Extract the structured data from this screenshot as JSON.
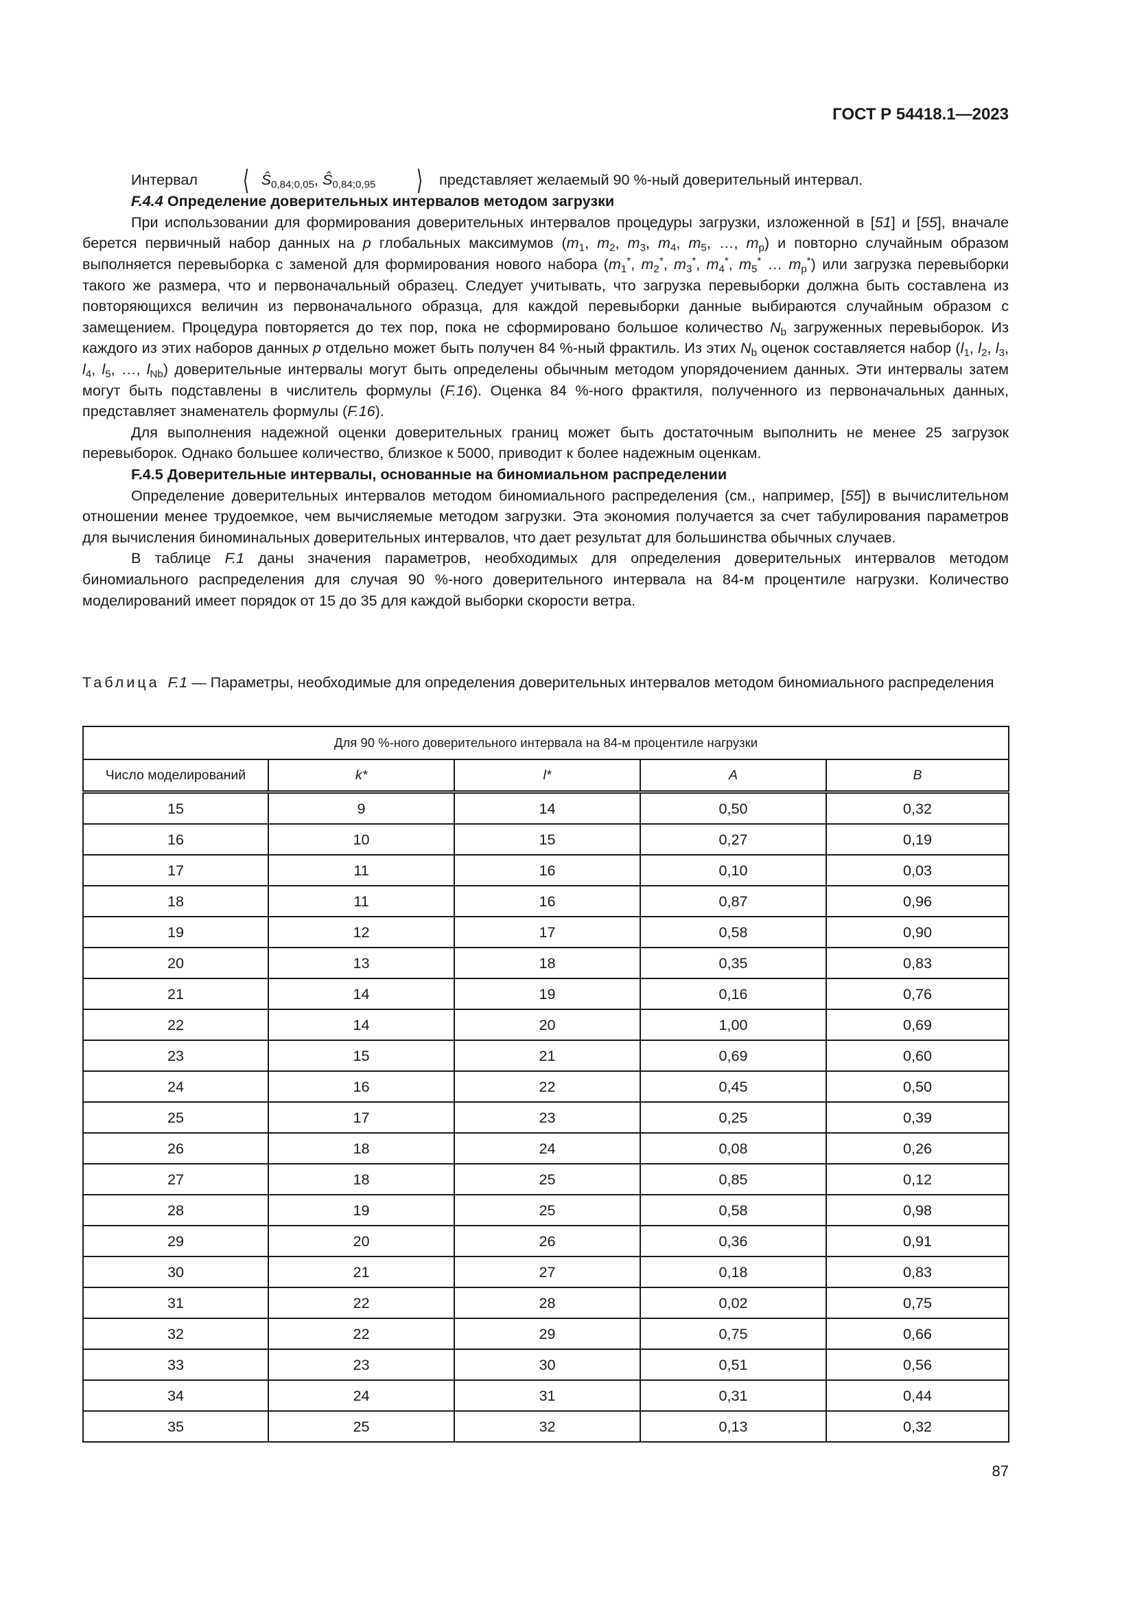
{
  "header": {
    "doc_id": "ГОСТ Р 54418.1—2023"
  },
  "intro": {
    "prefix": "Интервал ",
    "open": "⟨",
    "s1": "Ŝ",
    "s1_sub": "0,84;0,05",
    "sep": ", ",
    "s2": "Ŝ",
    "s2_sub": "0,84;0,95",
    "close": "⟩",
    "suffix": " представляет желаемый 90 %-ный доверительный интервал."
  },
  "sections": [
    {
      "type": "heading",
      "runs": [
        [
          "F.4.4",
          "i"
        ],
        [
          "  Определение доверительных интервалов методом загрузки",
          ""
        ]
      ]
    },
    {
      "type": "para",
      "runs": [
        [
          "При использовании для формирования доверительных интервалов процедуры загрузки, изложенной в [",
          ""
        ],
        [
          "51",
          "i"
        ],
        [
          "] и [",
          ""
        ],
        [
          "55",
          "i"
        ],
        [
          "], вначале берется первичный набор данных на ",
          ""
        ],
        [
          "p",
          "i"
        ],
        [
          " глобальных максимумов (",
          ""
        ],
        [
          "m",
          "i"
        ],
        [
          "1",
          "sub"
        ],
        [
          ", ",
          ""
        ],
        [
          "m",
          "i"
        ],
        [
          "2",
          "sub"
        ],
        [
          ", ",
          ""
        ],
        [
          "m",
          "i"
        ],
        [
          "3",
          "sub"
        ],
        [
          ", ",
          ""
        ],
        [
          "m",
          "i"
        ],
        [
          "4",
          "sub"
        ],
        [
          ", ",
          ""
        ],
        [
          "m",
          "i"
        ],
        [
          "5",
          "sub"
        ],
        [
          ", …, ",
          ""
        ],
        [
          "m",
          "i"
        ],
        [
          "p",
          "sub"
        ],
        [
          ") и по­вторно случайным образом выполняется перевыборка с заменой для формирования нового набора (",
          ""
        ],
        [
          "m",
          "i"
        ],
        [
          "1",
          "sub"
        ],
        [
          "*",
          "sup"
        ],
        [
          ", ",
          ""
        ],
        [
          "m",
          "i"
        ],
        [
          "2",
          "sub"
        ],
        [
          "*",
          "sup"
        ],
        [
          ", ",
          ""
        ],
        [
          "m",
          "i"
        ],
        [
          "3",
          "sub"
        ],
        [
          "*",
          "sup"
        ],
        [
          ", ",
          ""
        ],
        [
          "m",
          "i"
        ],
        [
          "4",
          "sub"
        ],
        [
          "*",
          "sup"
        ],
        [
          ", ",
          ""
        ],
        [
          "m",
          "i"
        ],
        [
          "5",
          "sub"
        ],
        [
          "*",
          "sup"
        ],
        [
          " … ",
          ""
        ],
        [
          "m",
          "i"
        ],
        [
          "p",
          "sub"
        ],
        [
          "*",
          "sup"
        ],
        [
          ") или загрузка перевыборки такого же размера, что и первоначальный образец. Следует учитывать, что загрузка перевыборки должна быть составлена из повторяющихся величин из первоначального образца, для каждой перевыборки данные выбираются случайным образом с замещением. Процедура повторяется до тех пор, пока не сформировано большое количество ",
          ""
        ],
        [
          "N",
          "i"
        ],
        [
          "b",
          "sub"
        ],
        [
          " загруженных перевыборок. Из каждого из этих наборов данных ",
          ""
        ],
        [
          "p",
          "i"
        ],
        [
          " отдельно может быть получен 84 %-ный фрактиль. Из этих ",
          ""
        ],
        [
          "N",
          "i"
        ],
        [
          "b",
          "sub"
        ],
        [
          " оценок составляется набор (",
          ""
        ],
        [
          "l",
          "i"
        ],
        [
          "1",
          "sub"
        ],
        [
          ", ",
          ""
        ],
        [
          "l",
          "i"
        ],
        [
          "2",
          "sub"
        ],
        [
          ", ",
          ""
        ],
        [
          "l",
          "i"
        ],
        [
          "3",
          "sub"
        ],
        [
          ", ",
          ""
        ],
        [
          "l",
          "i"
        ],
        [
          "4",
          "sub"
        ],
        [
          ", ",
          ""
        ],
        [
          "l",
          "i"
        ],
        [
          "5",
          "sub"
        ],
        [
          ", …, ",
          ""
        ],
        [
          "l",
          "i"
        ],
        [
          "Nb",
          "sub"
        ],
        [
          ") до­верительные интервалы могут быть определены обычным методом упорядочением данных. Эти интервалы затем могут быть подставлены в числитель формулы (",
          ""
        ],
        [
          "F.16",
          "i"
        ],
        [
          "). Оценка 84 %-ного фрактиля, полученного из первоначаль­ных данных, представляет знаменатель формулы (",
          ""
        ],
        [
          "F.16",
          "i"
        ],
        [
          ").",
          ""
        ]
      ]
    },
    {
      "type": "para",
      "runs": [
        [
          "Для выполнения надежной оценки доверительных границ может быть достаточным выполнить не менее 25 загрузок перевыборок. Однако большее количество, близкое к 5000, приводит к более надежным оценкам.",
          ""
        ]
      ]
    },
    {
      "type": "heading",
      "runs": [
        [
          "F.4.5  Доверительные интервалы, основанные на биномиальном распределении",
          ""
        ]
      ]
    },
    {
      "type": "para",
      "runs": [
        [
          "Определение доверительных интервалов методом биномиального распределения (см., например, [",
          ""
        ],
        [
          "55",
          "i"
        ],
        [
          "]) в вы­числительном отношении менее трудоемкое, чем вычисляемые методом загрузки. Эта экономия получается за счет табулирования параметров для вычисления биноминальных доверительных интервалов, что дает результат для большинства обычных случаев.",
          ""
        ]
      ]
    },
    {
      "type": "para",
      "runs": [
        [
          "В таблице ",
          ""
        ],
        [
          "F.1",
          "i"
        ],
        [
          " даны значения параметров, необходимых для определения доверительных интервалов мето­дом биномиального распределения для случая 90 %-ного доверительного интервала на 84-м процентиле нагрузки. Количество моделирований имеет порядок от 15 до 35 для каждой выборки скорости ветра.",
          ""
        ]
      ]
    }
  ],
  "table": {
    "caption_label": "Таблица",
    "caption_id": "F.1",
    "caption_text": " — Параметры, необходимые для определения доверительных интервалов методом биномиаль­ного распределения",
    "span_header": "Для 90 %-ного доверительного интервала на 84-м процентиле нагрузки",
    "columns": [
      "Число моделирований",
      "k*",
      "l*",
      "A",
      "B"
    ],
    "rows": [
      [
        "15",
        "9",
        "14",
        "0,50",
        "0,32"
      ],
      [
        "16",
        "10",
        "15",
        "0,27",
        "0,19"
      ],
      [
        "17",
        "11",
        "16",
        "0,10",
        "0,03"
      ],
      [
        "18",
        "11",
        "16",
        "0,87",
        "0,96"
      ],
      [
        "19",
        "12",
        "17",
        "0,58",
        "0,90"
      ],
      [
        "20",
        "13",
        "18",
        "0,35",
        "0,83"
      ],
      [
        "21",
        "14",
        "19",
        "0,16",
        "0,76"
      ],
      [
        "22",
        "14",
        "20",
        "1,00",
        "0,69"
      ],
      [
        "23",
        "15",
        "21",
        "0,69",
        "0,60"
      ],
      [
        "24",
        "16",
        "22",
        "0,45",
        "0,50"
      ],
      [
        "25",
        "17",
        "23",
        "0,25",
        "0,39"
      ],
      [
        "26",
        "18",
        "24",
        "0,08",
        "0,26"
      ],
      [
        "27",
        "18",
        "25",
        "0,85",
        "0,12"
      ],
      [
        "28",
        "19",
        "25",
        "0,58",
        "0,98"
      ],
      [
        "29",
        "20",
        "26",
        "0,36",
        "0,91"
      ],
      [
        "30",
        "21",
        "27",
        "0,18",
        "0,83"
      ],
      [
        "31",
        "22",
        "28",
        "0,02",
        "0,75"
      ],
      [
        "32",
        "22",
        "29",
        "0,75",
        "0,66"
      ],
      [
        "33",
        "23",
        "30",
        "0,51",
        "0,56"
      ],
      [
        "34",
        "24",
        "31",
        "0,31",
        "0,44"
      ],
      [
        "35",
        "25",
        "32",
        "0,13",
        "0,32"
      ]
    ]
  },
  "footer": {
    "page_number": "87"
  }
}
